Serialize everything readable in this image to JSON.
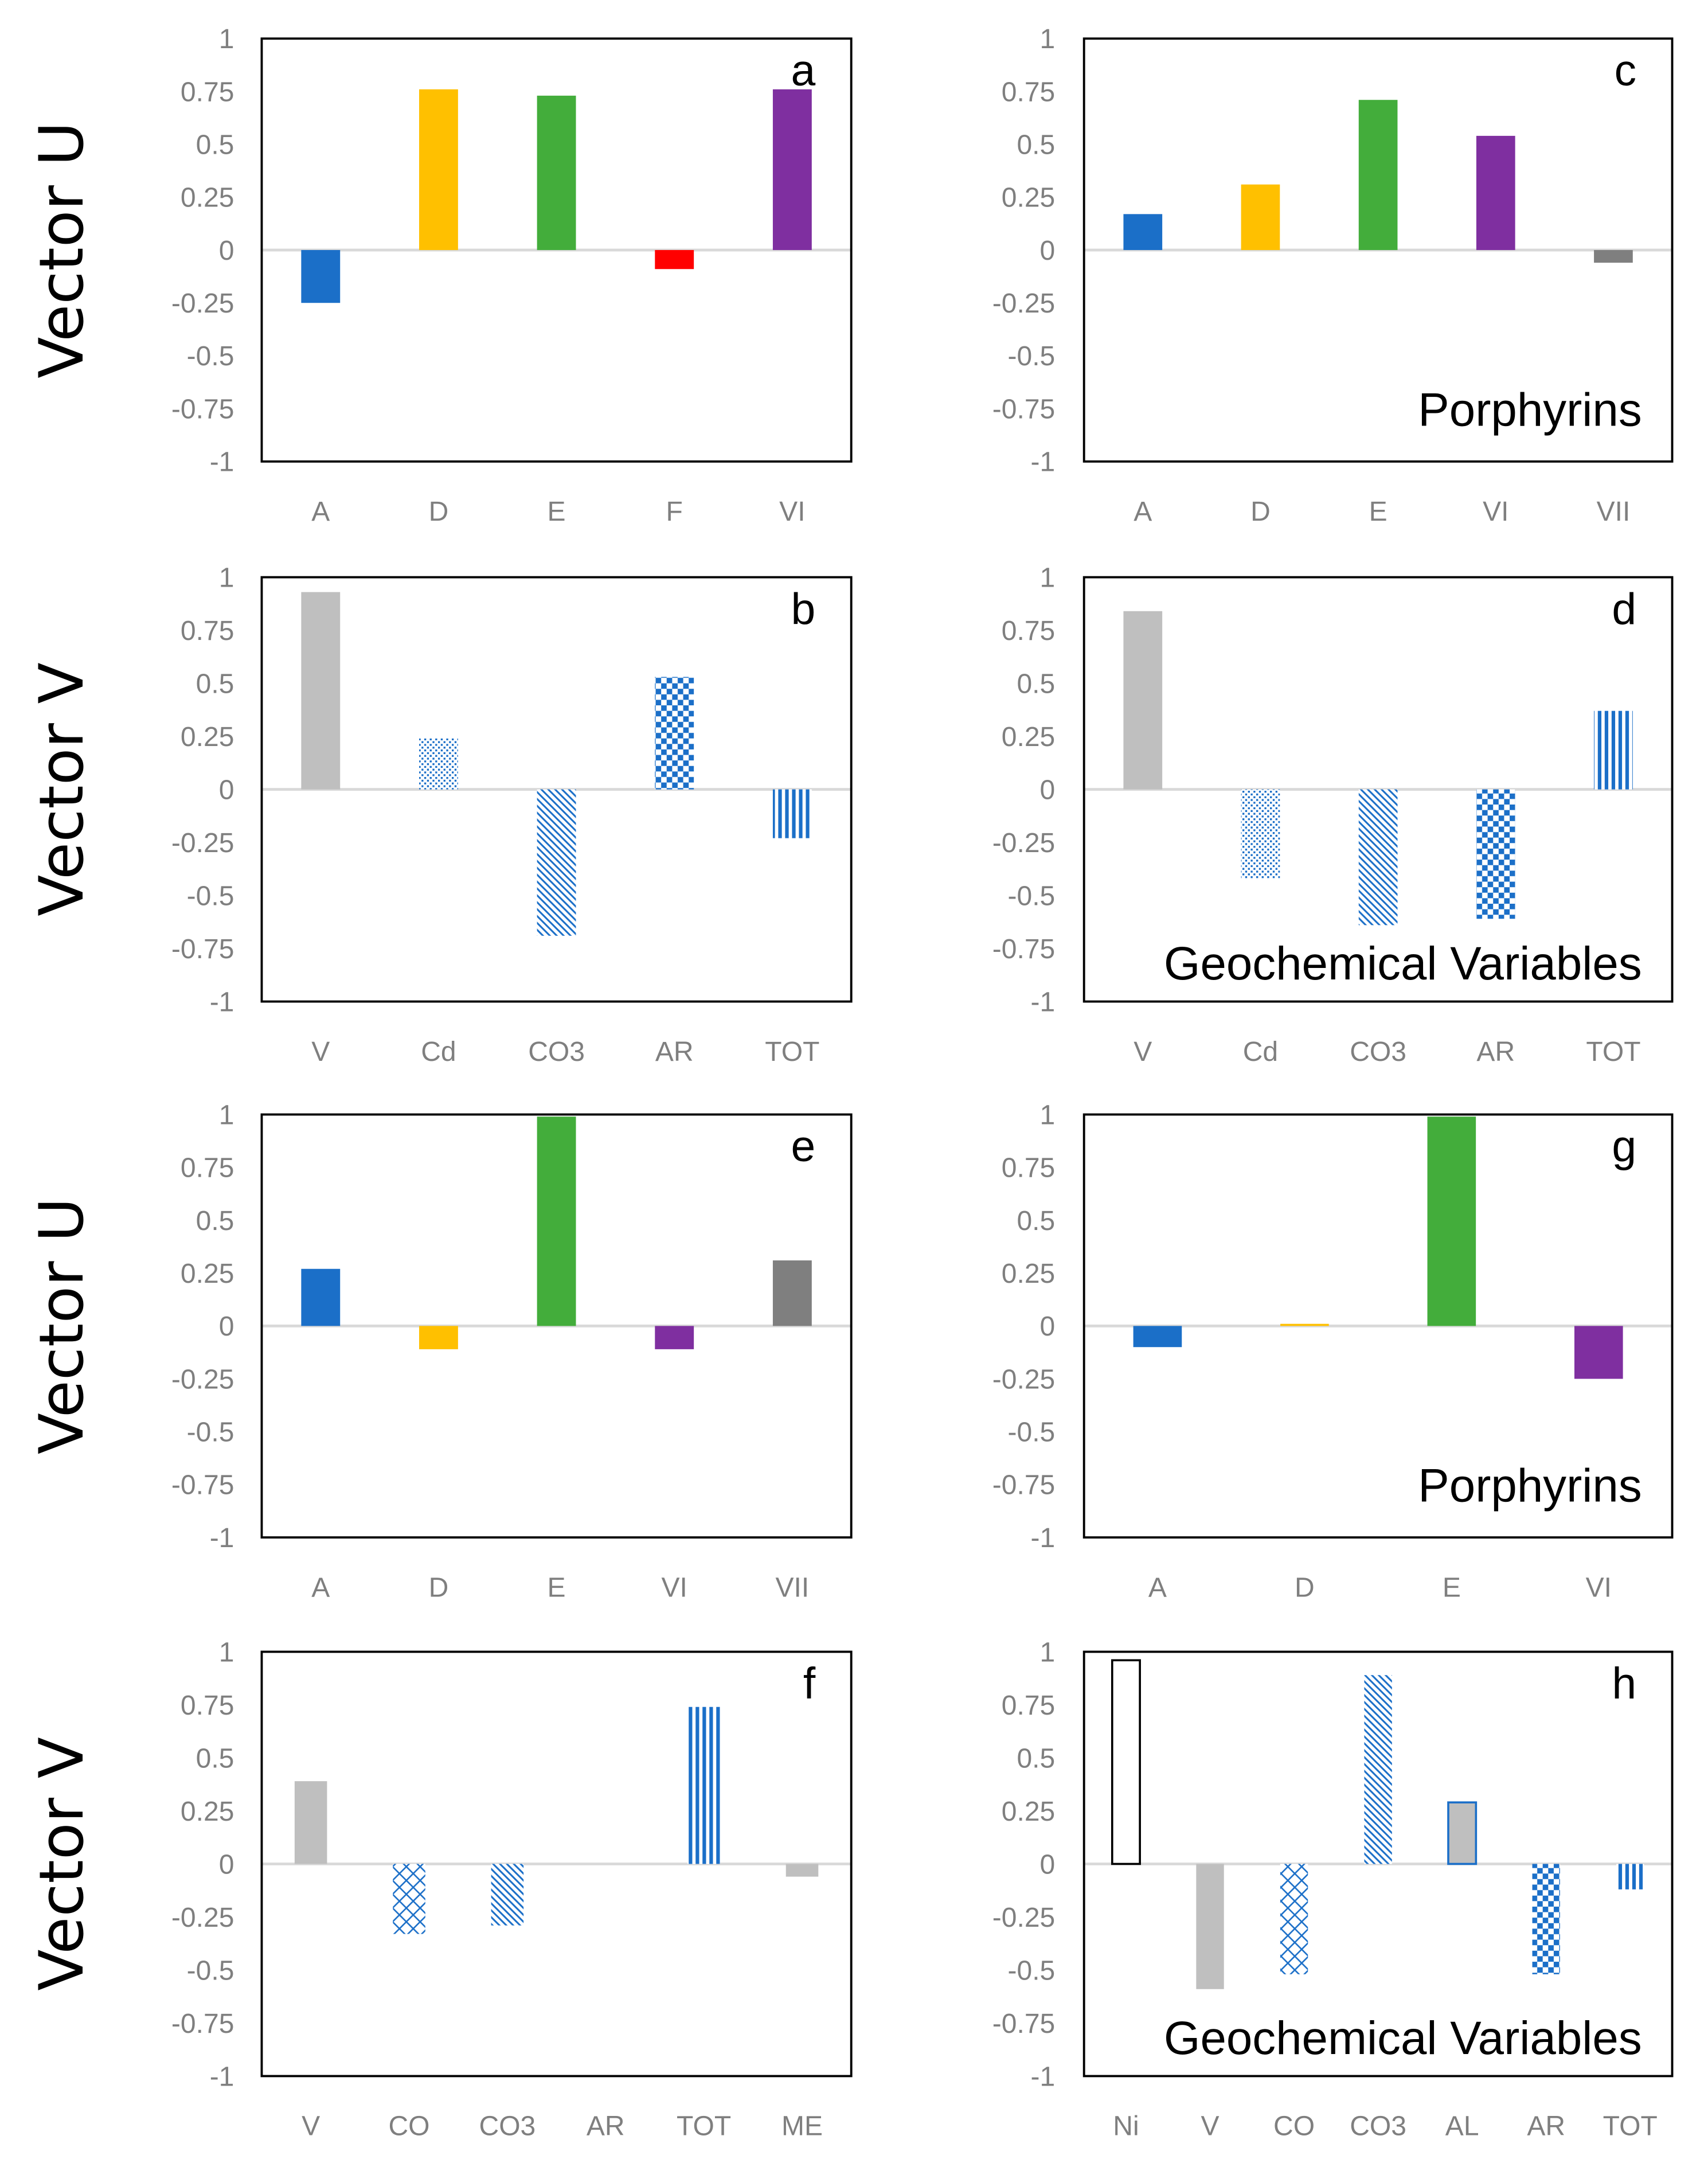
{
  "row_labels": [
    "Vector U",
    "Vector V",
    "Vector U",
    "Vector V"
  ],
  "colors": {
    "blue": "#1b6fc8",
    "yellow": "#ffc000",
    "green": "#43ad3b",
    "red": "#ff0000",
    "purple": "#7f2fa0",
    "darkgray": "#7f7f7f",
    "lightgray": "#bfbfbf",
    "pattern": "#1b6fc8"
  },
  "chart_data": [
    {
      "type": "bar",
      "panel": "a",
      "row": 0,
      "col": 0,
      "note": "",
      "ylim": [
        -1,
        1
      ],
      "yticks": [
        "1",
        "0.75",
        "0.5",
        "0.25",
        "0",
        "-0.25",
        "-0.5",
        "-0.75",
        "-1"
      ],
      "categories": [
        "A",
        "D",
        "E",
        "F",
        "VI"
      ],
      "values": [
        -0.25,
        0.76,
        0.73,
        -0.09,
        0.76
      ],
      "styles": [
        "blue",
        "yellow",
        "green",
        "red",
        "purple"
      ]
    },
    {
      "type": "bar",
      "panel": "c",
      "row": 0,
      "col": 1,
      "note": "Porphyrins",
      "ylim": [
        -1,
        1
      ],
      "yticks": [
        "1",
        "0.75",
        "0.5",
        "0.25",
        "0",
        "-0.25",
        "-0.5",
        "-0.75",
        "-1"
      ],
      "categories": [
        "A",
        "D",
        "E",
        "VI",
        "VII"
      ],
      "values": [
        0.17,
        0.31,
        0.71,
        0.54,
        -0.06
      ],
      "styles": [
        "blue",
        "yellow",
        "green",
        "purple",
        "darkgray"
      ]
    },
    {
      "type": "bar",
      "panel": "b",
      "row": 1,
      "col": 0,
      "note": "",
      "ylim": [
        -1,
        1
      ],
      "yticks": [
        "1",
        "0.75",
        "0.5",
        "0.25",
        "0",
        "-0.25",
        "-0.5",
        "-0.75",
        "-1"
      ],
      "categories": [
        "V",
        "Cd",
        "CO3",
        "AR",
        "TOT"
      ],
      "values": [
        0.93,
        0.24,
        -0.69,
        0.53,
        -0.23
      ],
      "styles": [
        "lightgray",
        "dots",
        "diag",
        "checker",
        "vstripes"
      ]
    },
    {
      "type": "bar",
      "panel": "d",
      "row": 1,
      "col": 1,
      "note": "Geochemical Variables",
      "ylim": [
        -1,
        1
      ],
      "yticks": [
        "1",
        "0.75",
        "0.5",
        "0.25",
        "0",
        "-0.25",
        "-0.5",
        "-0.75",
        "-1"
      ],
      "categories": [
        "V",
        "Cd",
        "CO3",
        "AR",
        "TOT"
      ],
      "values": [
        0.84,
        -0.42,
        -0.64,
        -0.61,
        0.37
      ],
      "styles": [
        "lightgray",
        "dots",
        "diag",
        "checker",
        "vstripes"
      ]
    },
    {
      "type": "bar",
      "panel": "e",
      "row": 2,
      "col": 0,
      "note": "",
      "ylim": [
        -1,
        1
      ],
      "yticks": [
        "1",
        "0.75",
        "0.5",
        "0.25",
        "0",
        "-0.25",
        "-0.5",
        "-0.75",
        "-1"
      ],
      "categories": [
        "A",
        "D",
        "E",
        "VI",
        "VII"
      ],
      "values": [
        0.27,
        -0.11,
        0.99,
        -0.11,
        0.31
      ],
      "styles": [
        "blue",
        "yellow",
        "green",
        "purple",
        "darkgray"
      ]
    },
    {
      "type": "bar",
      "panel": "g",
      "row": 2,
      "col": 1,
      "note": "Porphyrins",
      "ylim": [
        -1,
        1
      ],
      "yticks": [
        "1",
        "0.75",
        "0.5",
        "0.25",
        "0",
        "-0.25",
        "-0.5",
        "-0.75",
        "-1"
      ],
      "categories": [
        "A",
        "D",
        "E",
        "VI"
      ],
      "values": [
        -0.1,
        0.01,
        0.99,
        -0.25
      ],
      "styles": [
        "blue",
        "yellow",
        "green",
        "purple"
      ]
    },
    {
      "type": "bar",
      "panel": "f",
      "row": 3,
      "col": 0,
      "note": "",
      "ylim": [
        -1,
        1
      ],
      "yticks": [
        "1",
        "0.75",
        "0.5",
        "0.25",
        "0",
        "-0.25",
        "-0.5",
        "-0.75",
        "-1"
      ],
      "categories": [
        "V",
        "CO",
        "CO3",
        "AR",
        "TOT",
        "ME"
      ],
      "values": [
        0.39,
        -0.33,
        -0.29,
        0,
        0.74,
        -0.06
      ],
      "styles": [
        "lightgray",
        "lattice",
        "diag",
        "checker",
        "vstripes",
        "lightgray"
      ]
    },
    {
      "type": "bar",
      "panel": "h",
      "row": 3,
      "col": 1,
      "note": "Geochemical Variables",
      "ylim": [
        -1,
        1
      ],
      "yticks": [
        "1",
        "0.75",
        "0.5",
        "0.25",
        "0",
        "-0.25",
        "-0.5",
        "-0.75",
        "-1"
      ],
      "categories": [
        "Ni",
        "V",
        "CO",
        "CO3",
        "AL",
        "AR",
        "TOT"
      ],
      "values": [
        0.96,
        -0.59,
        -0.52,
        0.89,
        0.29,
        -0.52,
        -0.12
      ],
      "styles": [
        "outline",
        "lightgray",
        "lattice",
        "diag",
        "grayblue",
        "checker",
        "vstripes"
      ]
    }
  ]
}
